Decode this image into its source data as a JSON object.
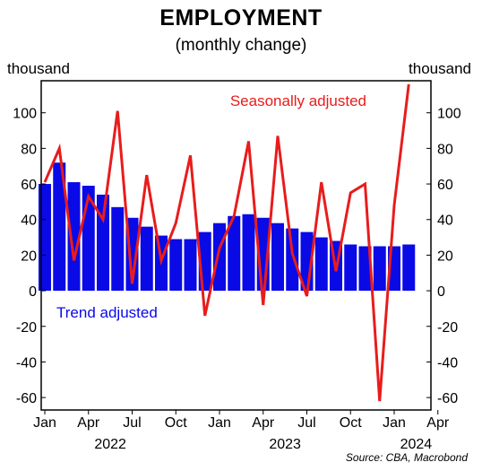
{
  "title": "EMPLOYMENT",
  "subtitle": "(monthly change)",
  "ylabel_left": "thousand",
  "ylabel_right": "thousand",
  "source": "Source: CBA, Macrobond",
  "colors": {
    "trend": "#0a0ae6",
    "seasonal": "#e81c1c"
  },
  "chart_data": {
    "type": "bar",
    "x_start": "2022-01",
    "ylim": [
      -67,
      118
    ],
    "yticks": [
      -60,
      -40,
      -20,
      0,
      20,
      40,
      60,
      80,
      100
    ],
    "x_month_ticks": [
      {
        "label": "Jan",
        "month_index": 0
      },
      {
        "label": "Apr",
        "month_index": 3
      },
      {
        "label": "Jul",
        "month_index": 6
      },
      {
        "label": "Oct",
        "month_index": 9
      },
      {
        "label": "Jan",
        "month_index": 12
      },
      {
        "label": "Apr",
        "month_index": 15
      },
      {
        "label": "Jul",
        "month_index": 18
      },
      {
        "label": "Oct",
        "month_index": 21
      },
      {
        "label": "Jan",
        "month_index": 24
      },
      {
        "label": "Apr",
        "month_index": 27
      }
    ],
    "x_year_ticks": [
      {
        "label": "2022",
        "month_index": 4.5
      },
      {
        "label": "2023",
        "month_index": 16.5
      },
      {
        "label": "2024",
        "month_index": 25.5
      }
    ],
    "categories": [
      "2022-01",
      "2022-02",
      "2022-03",
      "2022-04",
      "2022-05",
      "2022-06",
      "2022-07",
      "2022-08",
      "2022-09",
      "2022-10",
      "2022-11",
      "2022-12",
      "2023-01",
      "2023-02",
      "2023-03",
      "2023-04",
      "2023-05",
      "2023-06",
      "2023-07",
      "2023-08",
      "2023-09",
      "2023-10",
      "2023-11",
      "2023-12",
      "2024-01",
      "2024-02"
    ],
    "series": [
      {
        "name": "Trend adjusted",
        "type": "bar",
        "values": [
          60,
          72,
          61,
          59,
          54,
          47,
          41,
          36,
          31,
          29,
          29,
          33,
          38,
          42,
          43,
          41,
          38,
          35,
          33,
          30,
          28,
          26,
          25,
          25,
          25,
          26
        ]
      },
      {
        "name": "Seasonally adjusted",
        "type": "line",
        "values": [
          61,
          80,
          17,
          53,
          40,
          101,
          4,
          65,
          17,
          38,
          76,
          -14,
          24,
          42,
          84,
          -8,
          87,
          21,
          -3,
          61,
          11,
          55,
          60,
          -62,
          48,
          116
        ]
      }
    ]
  }
}
